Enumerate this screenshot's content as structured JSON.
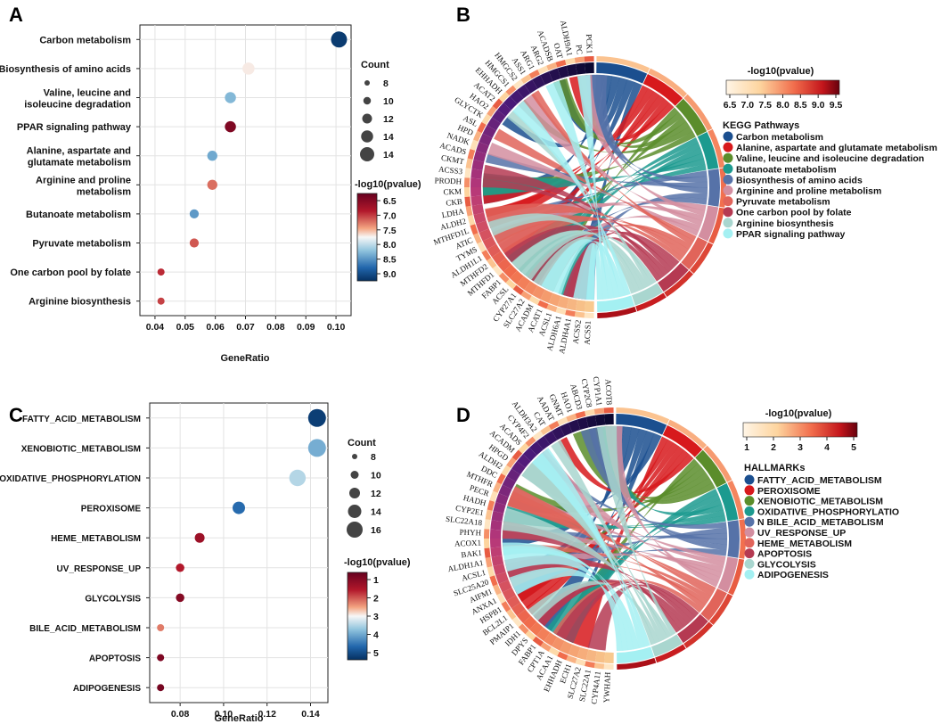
{
  "chart_data": [
    {
      "id": "A",
      "type": "scatter",
      "panel_label": "A",
      "xlabel": "GeneRatio",
      "xlim": [
        0.035,
        0.105
      ],
      "xticks": [
        "0.04",
        "0.05",
        "0.06",
        "0.07",
        "0.08",
        "0.09",
        "0.10"
      ],
      "categories": [
        "Carbon metabolism",
        "Biosynthesis of amino acids",
        "Valine, leucine and\nisoleucine degradation",
        "PPAR signaling pathway",
        "Alanine, aspartate and\nglutamate metabolism",
        "Arginine and proline\nmetabolism",
        "Butanoate metabolism",
        "Pyruvate metabolism",
        "One carbon pool by folate",
        "Arginine biosynthesis"
      ],
      "generatio": [
        0.101,
        0.071,
        0.065,
        0.065,
        0.059,
        0.059,
        0.053,
        0.053,
        0.042,
        0.042
      ],
      "counts": [
        15,
        11,
        10,
        10,
        9,
        9,
        8,
        8,
        6,
        6
      ],
      "log10p": [
        9.3,
        7.8,
        8.4,
        6.5,
        8.5,
        7.3,
        8.6,
        7.2,
        7.0,
        7.1
      ],
      "size_legend": {
        "title": "Count",
        "values": [
          "8",
          "10",
          "12",
          "14",
          "14"
        ]
      },
      "color_legend": {
        "title": "-log10(pvalue)",
        "ticks": [
          "6.5",
          "7.0",
          "7.5",
          "8.0",
          "8.5",
          "9.0"
        ],
        "range": [
          6.3,
          9.4
        ]
      }
    },
    {
      "id": "C",
      "type": "scatter",
      "panel_label": "C",
      "xlabel": "GeneRatio",
      "xlim": [
        0.066,
        0.148
      ],
      "xticks": [
        "0.08",
        "0.10",
        "0.12",
        "0.14"
      ],
      "categories": [
        "FATTY_ACID_METABOLISM",
        "XENOBIOTIC_METABOLISM",
        "OXIDATIVE_PHOSPHORYLATION",
        "PEROXISOME",
        "HEME_METABOLISM",
        "UV_RESPONSE_UP",
        "GLYCOLYSIS",
        "BILE_ACID_METABOLISM",
        "APOPTOSIS",
        "ADIPOGENESIS"
      ],
      "generatio": [
        0.143,
        0.143,
        0.134,
        0.107,
        0.089,
        0.08,
        0.08,
        0.071,
        0.071,
        0.071
      ],
      "counts": [
        16,
        16,
        15,
        12,
        10,
        9,
        9,
        8,
        8,
        8
      ],
      "log10p": [
        5.6,
        4.3,
        3.8,
        5.0,
        1.5,
        1.8,
        1.2,
        2.5,
        1.1,
        1.0
      ],
      "size_legend": {
        "title": "Count",
        "values": [
          "8",
          "10",
          "12",
          "14",
          "16"
        ]
      },
      "color_legend": {
        "title": "-log10(pvalue)",
        "ticks": [
          "1",
          "2",
          "3",
          "4",
          "5"
        ],
        "range": [
          0.8,
          5.8
        ]
      }
    },
    {
      "id": "B",
      "type": "chord",
      "panel_label": "B",
      "legend_title": "KEGG Pathways",
      "pathways": [
        {
          "name": "Carbon metabolism",
          "color": "#1b4f8f"
        },
        {
          "name": "Alanine, aspartate and glutamate metabolism",
          "color": "#d7191c"
        },
        {
          "name": "Valine, leucine and isoleucine degradation",
          "color": "#5b8d2b"
        },
        {
          "name": "Butanoate metabolism",
          "color": "#1c9a8f"
        },
        {
          "name": "Biosynthesis of amino acids",
          "color": "#5672a8"
        },
        {
          "name": "Arginine and proline metabolism",
          "color": "#d38ea0"
        },
        {
          "name": "Pyruvate metabolism",
          "color": "#e1645a"
        },
        {
          "name": "One carbon pool by folate",
          "color": "#b53a52"
        },
        {
          "name": "Arginine biosynthesis",
          "color": "#a9d6cf"
        },
        {
          "name": "PPAR signaling pathway",
          "color": "#a4f0f2"
        }
      ],
      "color_scale": {
        "title": "-log10(pvalue)",
        "ticks": [
          "6.5",
          "7.0",
          "7.5",
          "8.0",
          "8.5",
          "9.0",
          "9.5"
        ]
      },
      "genes": [
        "ACSS1",
        "ACSS2",
        "ALDH4A1",
        "ALDH6A1",
        "ACSL1",
        "ACAT1",
        "ACADM",
        "SLC27A2",
        "CYP27A1",
        "ACSL",
        "FABP1",
        "MTHFD1",
        "MTHFD2",
        "ALDH1L1",
        "TYMS",
        "ATIC",
        "MTHFD1L",
        "ALDH2",
        "LDHA",
        "CKB",
        "CKM",
        "PRODH",
        "ACSS3",
        "CKMT",
        "ACADS",
        "NADK",
        "HPD",
        "ASL",
        "GLYCTK",
        "HAO2",
        "ACAT2",
        "EHHADH",
        "HMGCS1",
        "HMGCS2",
        "ASS1",
        "ARG1",
        "ARG2",
        "ACADSB",
        "OAT",
        "ALDH9A1",
        "PC",
        "PCK1"
      ]
    },
    {
      "id": "D",
      "type": "chord",
      "panel_label": "D",
      "legend_title": "HALLMARKs",
      "pathways": [
        {
          "name": "FATTY_ACID_METABOLISM",
          "color": "#1b4f8f"
        },
        {
          "name": "PEROXISOME",
          "color": "#d7191c"
        },
        {
          "name": "XENOBIOTIC_METABOLISM",
          "color": "#5b8d2b"
        },
        {
          "name": "OXIDATIVE_PHOSPHORYLATIO",
          "color": "#1c9a8f"
        },
        {
          "name": "N BILE_ACID_METABOLISM",
          "color": "#5672a8"
        },
        {
          "name": "UV_RESPONSE_UP",
          "color": "#d38ea0"
        },
        {
          "name": "HEME_METABOLISM",
          "color": "#e1645a"
        },
        {
          "name": "APOPTOSIS",
          "color": "#b53a52"
        },
        {
          "name": "GLYCOLYSIS",
          "color": "#a9d6cf"
        },
        {
          "name": "ADIPOGENESIS",
          "color": "#a4f0f2"
        }
      ],
      "color_scale": {
        "title": "-log10(pvalue)",
        "ticks": [
          "1",
          "2",
          "3",
          "4",
          "5"
        ]
      },
      "genes": [
        "YWHAH",
        "CYP4A11",
        "SLC22A1",
        "SLC27A2",
        "ECH1",
        "EHHADH",
        "ACAA1",
        "CPT1A",
        "FABP1",
        "DPYS",
        "IDH1",
        "PMAIP1",
        "BCL2L1",
        "HSPB1",
        "ANXA1",
        "AIFM1",
        "SLC25A20",
        "ACSL1",
        "ALDH1A1",
        "BAK1",
        "ACOX1",
        "PHYH",
        "SLC22A18",
        "CYP2E1",
        "HADH",
        "PECR",
        "MTHFR",
        "DDC",
        "ALDH2",
        "HPGD",
        "ACADM",
        "ACADS",
        "CYP4F2",
        "ALDH3A2",
        "CAT",
        "AADAT",
        "GNMT",
        "HAO1",
        "ABCD3",
        "CYP2C8",
        "CYP1A1",
        "ACOT8"
      ]
    }
  ]
}
